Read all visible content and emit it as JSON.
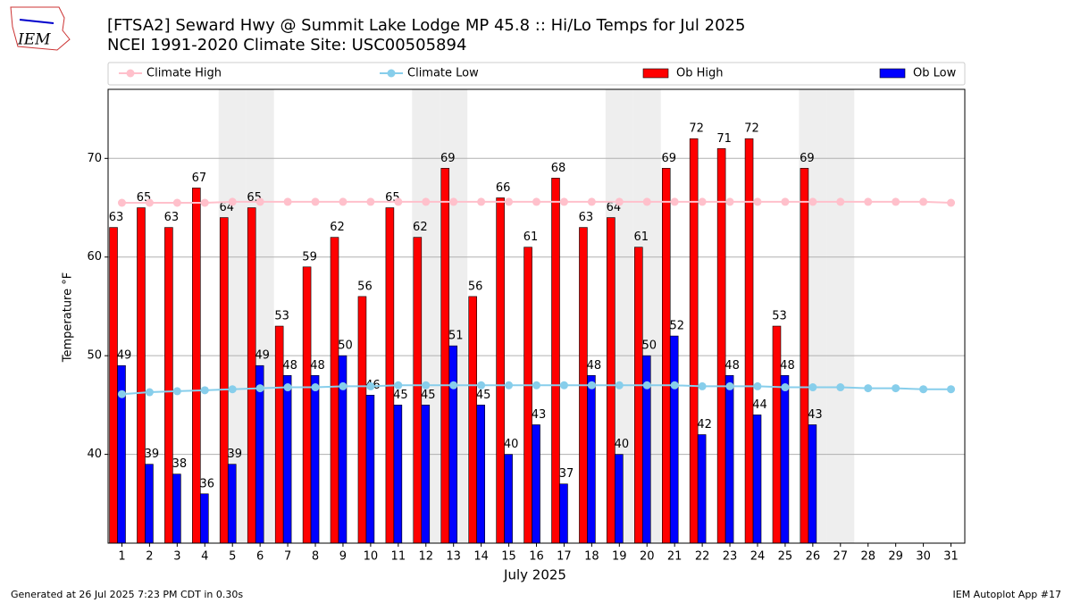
{
  "logo_text": "IEM",
  "footer_left": "Generated at 26 Jul 2025 7:23 PM CDT in 0.30s",
  "footer_right": "IEM Autoplot App #17",
  "chart_data": {
    "type": "bar",
    "title": "[FTSA2] Seward Hwy @ Summit Lake Lodge MP 45.8 :: Hi/Lo Temps for Jul 2025",
    "subtitle": "NCEI 1991-2020 Climate Site: USC00505894",
    "xlabel": "July 2025",
    "ylabel": "Temperature °F",
    "x": [
      1,
      2,
      3,
      4,
      5,
      6,
      7,
      8,
      9,
      10,
      11,
      12,
      13,
      14,
      15,
      16,
      17,
      18,
      19,
      20,
      21,
      22,
      23,
      24,
      25,
      26,
      27,
      28,
      29,
      30,
      31
    ],
    "xlim": [
      0.5,
      31.5
    ],
    "xticks": [
      1,
      2,
      3,
      4,
      5,
      6,
      7,
      8,
      9,
      10,
      11,
      12,
      13,
      14,
      15,
      16,
      17,
      18,
      19,
      20,
      21,
      22,
      23,
      24,
      25,
      26,
      27,
      28,
      29,
      30,
      31
    ],
    "ylim": [
      31,
      77
    ],
    "yticks": [
      40,
      50,
      60,
      70
    ],
    "grid": true,
    "legend": "top",
    "shaded_days": [
      5,
      6,
      12,
      13,
      19,
      20,
      26,
      27
    ],
    "series": [
      {
        "name": "Climate High",
        "kind": "line",
        "color": "#ffc0cb",
        "values": [
          65.5,
          65.5,
          65.5,
          65.5,
          65.6,
          65.6,
          65.6,
          65.6,
          65.6,
          65.6,
          65.6,
          65.6,
          65.6,
          65.6,
          65.6,
          65.6,
          65.6,
          65.6,
          65.6,
          65.6,
          65.6,
          65.6,
          65.6,
          65.6,
          65.6,
          65.6,
          65.6,
          65.6,
          65.6,
          65.6,
          65.5
        ]
      },
      {
        "name": "Climate Low",
        "kind": "line",
        "color": "#87ceeb",
        "values": [
          46.1,
          46.3,
          46.4,
          46.5,
          46.6,
          46.7,
          46.8,
          46.8,
          46.9,
          46.9,
          47.0,
          47.0,
          47.0,
          47.0,
          47.0,
          47.0,
          47.0,
          47.0,
          47.0,
          47.0,
          47.0,
          46.9,
          46.9,
          46.9,
          46.8,
          46.8,
          46.8,
          46.7,
          46.7,
          46.6,
          46.6
        ]
      },
      {
        "name": "Ob High",
        "kind": "bar",
        "color": "#ff0000",
        "values": [
          63,
          65,
          63,
          67,
          64,
          65,
          53,
          59,
          62,
          56,
          65,
          62,
          69,
          56,
          66,
          61,
          68,
          63,
          64,
          61,
          69,
          72,
          71,
          72,
          53,
          69,
          null,
          null,
          null,
          null,
          null
        ]
      },
      {
        "name": "Ob Low",
        "kind": "bar",
        "color": "#0000ff",
        "values": [
          49,
          39,
          38,
          36,
          39,
          49,
          48,
          48,
          50,
          46,
          45,
          45,
          51,
          45,
          40,
          43,
          37,
          48,
          40,
          50,
          52,
          42,
          48,
          44,
          48,
          43,
          null,
          null,
          null,
          null,
          null
        ]
      }
    ]
  }
}
